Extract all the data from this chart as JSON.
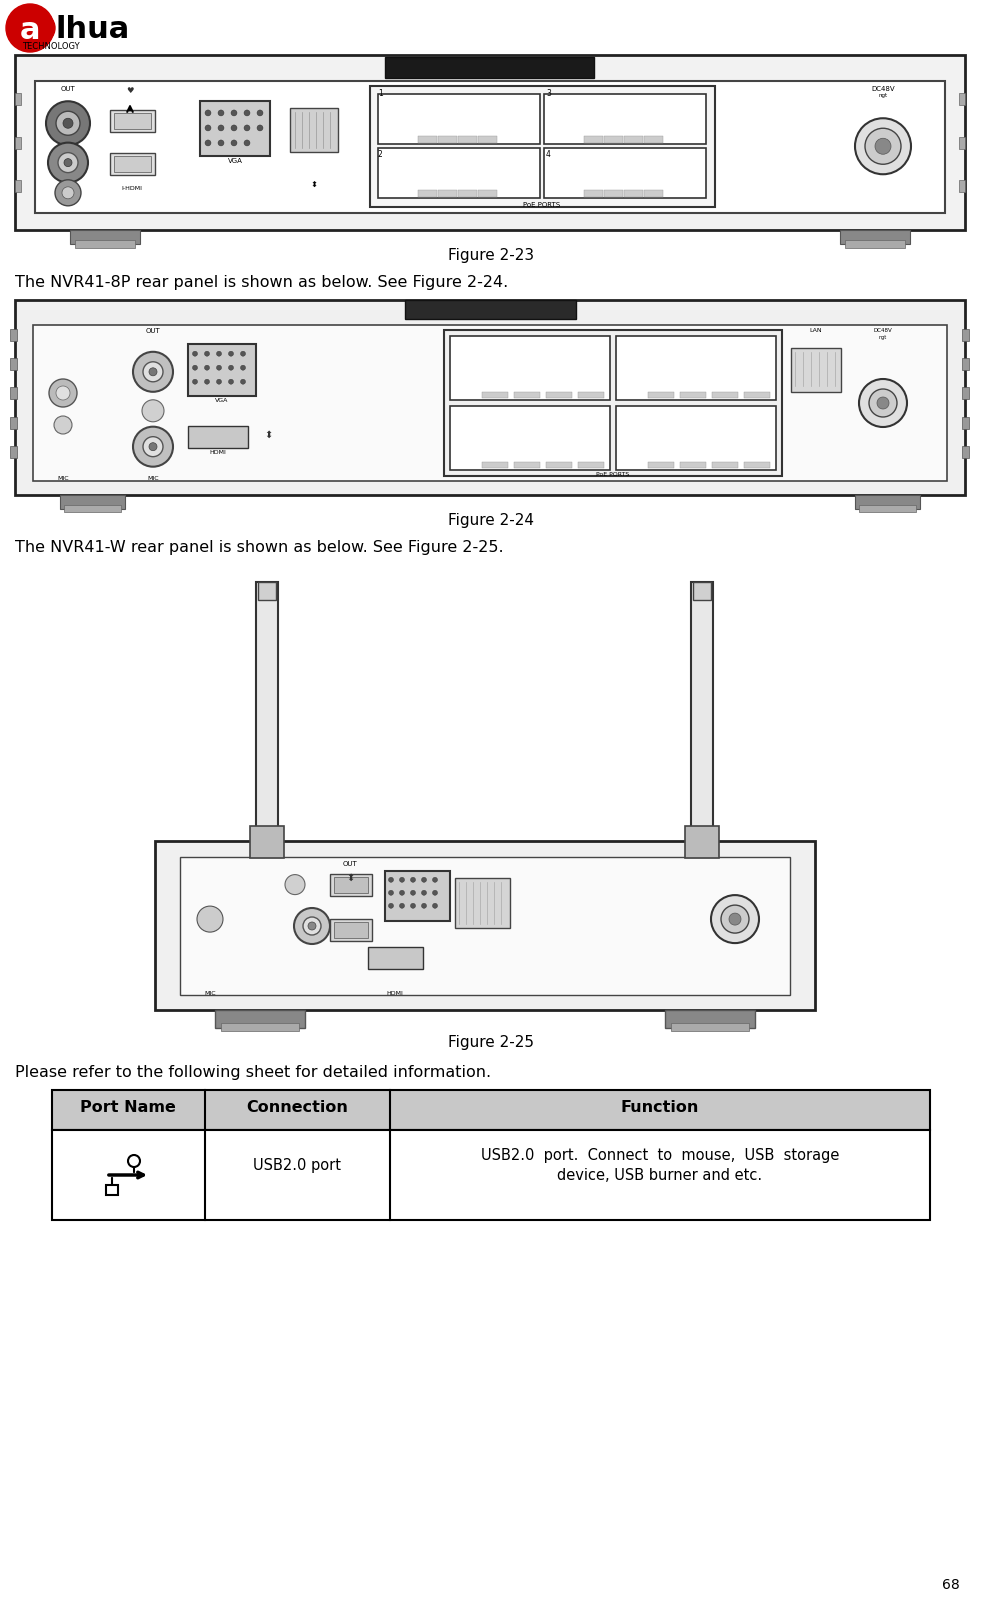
{
  "page_width": 9.82,
  "page_height": 15.99,
  "dpi": 100,
  "bg_color": "#ffffff",
  "fig23_caption": "Figure 2-23",
  "text1": "The NVR41-8P rear panel is shown as below. See Figure 2-24.",
  "fig24_caption": "Figure 2-24",
  "text2": "The NVR41-W rear panel is shown as below. See Figure 2-25.",
  "fig25_caption": "Figure 2-25",
  "text3": "Please refer to the following sheet for detailed information.",
  "table_header": [
    "Port Name",
    "Connection",
    "Function"
  ],
  "table_row1_col2": "USB2.0 port",
  "table_row1_col3_line1": "USB2.0  port.  Connect  to  mouse,  USB  storage",
  "table_row1_col3_line2": "device, USB burner and etc.",
  "header_bg": "#c8c8c8",
  "page_number": "68",
  "body_font_size": 11.5,
  "caption_font_size": 11,
  "header_font_size": 11.5,
  "table_font_size": 10.5,
  "logo_circle_color": "#cc0000",
  "logo_text_color": "#000000",
  "device_outline": "#222222",
  "device_body": "#f8f8f8",
  "device_dark": "#555555",
  "device_mid": "#aaaaaa",
  "device_light": "#dddddd",
  "port_bg": "#e8e8e8"
}
